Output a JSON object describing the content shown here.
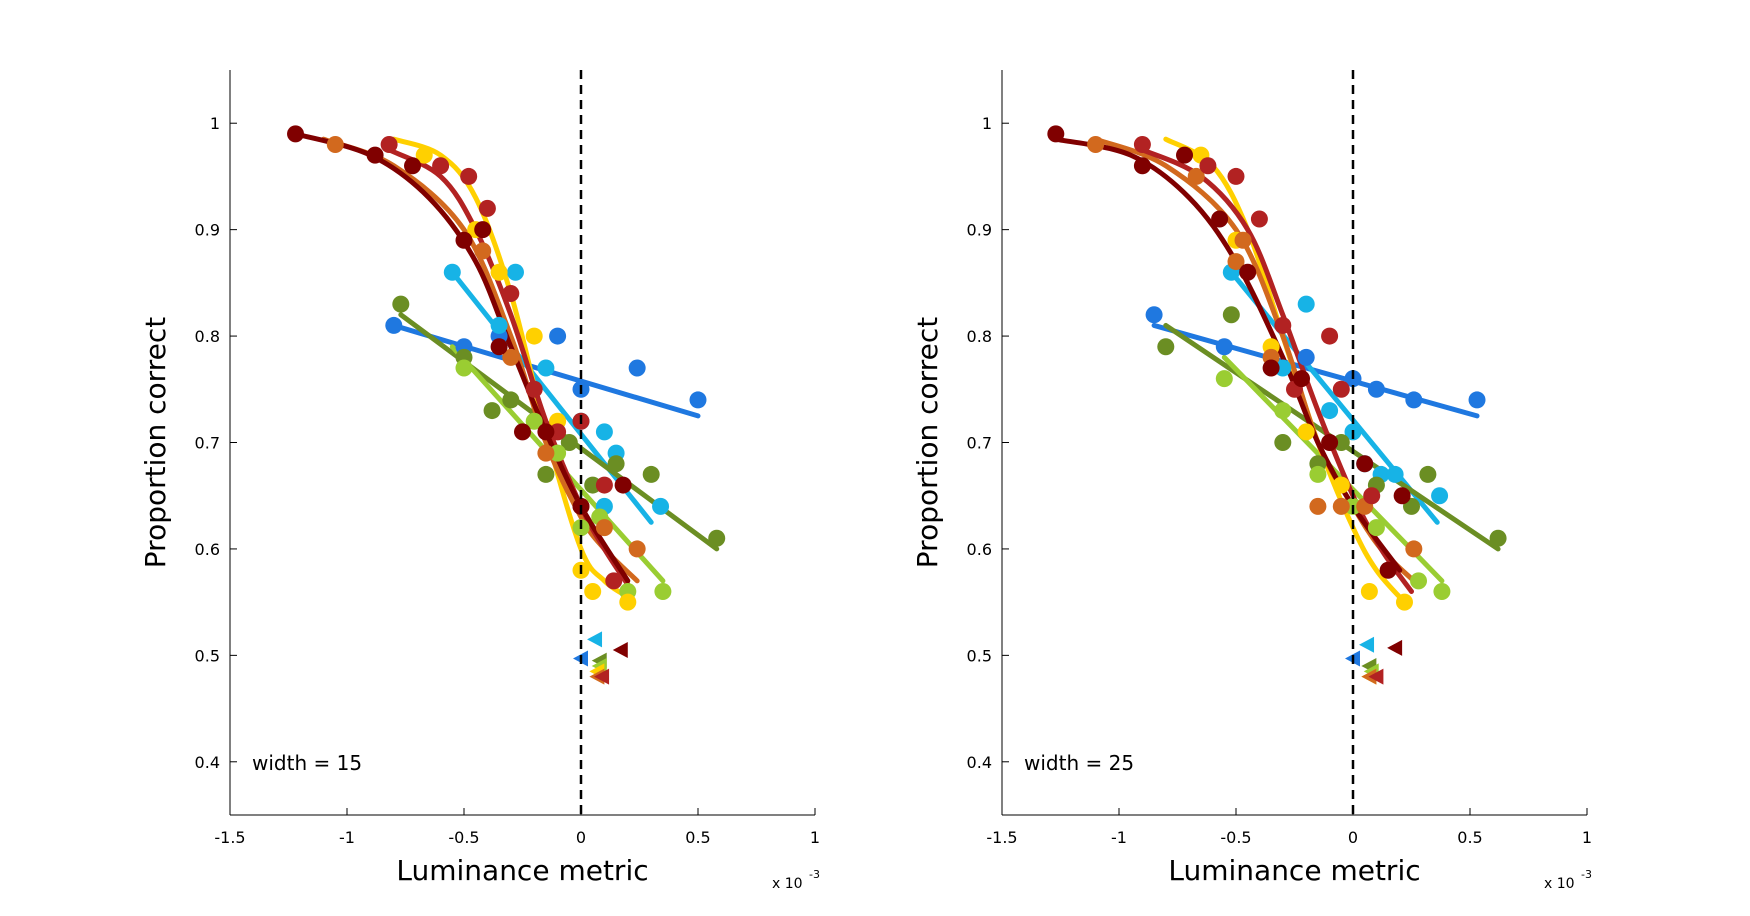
{
  "chart_data": [
    {
      "type": "scatter",
      "xlabel": "Luminance metric",
      "ylabel": "Proportion correct",
      "annotation": "width = 15",
      "x_multiplier_text": "x 10",
      "x_multiplier_exp": "-3",
      "xlim": [
        -1.5,
        1
      ],
      "ylim": [
        0.35,
        1.05
      ],
      "xticks": [
        -1.5,
        -1,
        -0.5,
        0,
        0.5,
        1
      ],
      "xticklabels": [
        "-1.5",
        "-1",
        "-0.5",
        "0",
        "0.5",
        "1"
      ],
      "yticks": [
        0.4,
        0.5,
        0.6,
        0.7,
        0.8,
        0.9,
        1
      ],
      "yticklabels": [
        "0.4",
        "0.5",
        "0.6",
        "0.7",
        "0.8",
        "0.9",
        "1"
      ],
      "reference_line_x": 0,
      "grid": false,
      "series": [
        {
          "color": "#1f78e0",
          "fit": "linear",
          "points": [
            [
              -0.8,
              0.81
            ],
            [
              -0.5,
              0.79
            ],
            [
              -0.35,
              0.8
            ],
            [
              -0.1,
              0.8
            ],
            [
              0,
              0.75
            ],
            [
              0.24,
              0.77
            ],
            [
              0.5,
              0.74
            ]
          ],
          "curve": [
            [
              -0.8,
              0.81
            ],
            [
              0.5,
              0.725
            ]
          ],
          "marker": [
            0,
            0.497
          ]
        },
        {
          "color": "#17b3e6",
          "fit": "linear",
          "points": [
            [
              -0.55,
              0.86
            ],
            [
              -0.28,
              0.86
            ],
            [
              -0.35,
              0.81
            ],
            [
              -0.15,
              0.77
            ],
            [
              0,
              0.72
            ],
            [
              0.1,
              0.71
            ],
            [
              0.15,
              0.69
            ],
            [
              0.1,
              0.64
            ],
            [
              0.34,
              0.64
            ]
          ],
          "curve": [
            [
              -0.55,
              0.86
            ],
            [
              0.3,
              0.625
            ]
          ],
          "marker": [
            0.06,
            0.515
          ]
        },
        {
          "color": "#6b8e23",
          "fit": "linear",
          "points": [
            [
              -0.77,
              0.83
            ],
            [
              -0.5,
              0.78
            ],
            [
              -0.38,
              0.73
            ],
            [
              -0.3,
              0.74
            ],
            [
              -0.15,
              0.67
            ],
            [
              -0.05,
              0.7
            ],
            [
              0.05,
              0.66
            ],
            [
              0.15,
              0.68
            ],
            [
              0.3,
              0.67
            ],
            [
              0.58,
              0.61
            ]
          ],
          "curve": [
            [
              -0.77,
              0.82
            ],
            [
              0.58,
              0.6
            ]
          ],
          "marker": [
            0.08,
            0.495
          ]
        },
        {
          "color": "#9acd32",
          "fit": "linear",
          "points": [
            [
              -0.5,
              0.77
            ],
            [
              -0.2,
              0.72
            ],
            [
              -0.1,
              0.69
            ],
            [
              0,
              0.62
            ],
            [
              0.08,
              0.63
            ],
            [
              0.2,
              0.56
            ],
            [
              0.35,
              0.56
            ]
          ],
          "curve": [
            [
              -0.55,
              0.79
            ],
            [
              0.35,
              0.57
            ]
          ],
          "marker": [
            0.08,
            0.49
          ]
        },
        {
          "color": "#ffd000",
          "fit": "sigmoid",
          "points": [
            [
              -0.67,
              0.97
            ],
            [
              -0.45,
              0.9
            ],
            [
              -0.35,
              0.86
            ],
            [
              -0.2,
              0.8
            ],
            [
              -0.1,
              0.72
            ],
            [
              0,
              0.58
            ],
            [
              0.05,
              0.56
            ],
            [
              0.2,
              0.55
            ]
          ],
          "curve": [
            [
              -0.8,
              0.985
            ],
            [
              -0.6,
              0.97
            ],
            [
              -0.45,
              0.93
            ],
            [
              -0.3,
              0.84
            ],
            [
              -0.15,
              0.71
            ],
            [
              0,
              0.6
            ],
            [
              0.1,
              0.57
            ],
            [
              0.2,
              0.555
            ]
          ],
          "marker": [
            0.07,
            0.485
          ]
        },
        {
          "color": "#d2691e",
          "fit": "sigmoid",
          "points": [
            [
              -1.05,
              0.98
            ],
            [
              -0.42,
              0.88
            ],
            [
              -0.3,
              0.78
            ],
            [
              -0.15,
              0.69
            ],
            [
              0,
              0.64
            ],
            [
              0.1,
              0.62
            ],
            [
              0.24,
              0.6
            ]
          ],
          "curve": [
            [
              -1.1,
              0.985
            ],
            [
              -0.8,
              0.96
            ],
            [
              -0.5,
              0.9
            ],
            [
              -0.3,
              0.8
            ],
            [
              -0.15,
              0.7
            ],
            [
              0,
              0.63
            ],
            [
              0.1,
              0.6
            ],
            [
              0.24,
              0.57
            ]
          ],
          "marker": [
            0.07,
            0.48
          ]
        },
        {
          "color": "#b22222",
          "fit": "sigmoid",
          "points": [
            [
              -0.82,
              0.98
            ],
            [
              -0.6,
              0.96
            ],
            [
              -0.48,
              0.95
            ],
            [
              -0.4,
              0.92
            ],
            [
              -0.3,
              0.84
            ],
            [
              -0.2,
              0.75
            ],
            [
              -0.1,
              0.71
            ],
            [
              0,
              0.72
            ],
            [
              0.1,
              0.66
            ],
            [
              0.14,
              0.57
            ]
          ],
          "curve": [
            [
              -0.82,
              0.975
            ],
            [
              -0.6,
              0.95
            ],
            [
              -0.45,
              0.9
            ],
            [
              -0.3,
              0.82
            ],
            [
              -0.15,
              0.72
            ],
            [
              0,
              0.64
            ],
            [
              0.1,
              0.6
            ],
            [
              0.22,
              0.56
            ]
          ],
          "marker": [
            0.09,
            0.48
          ]
        },
        {
          "color": "#800000",
          "fit": "sigmoid",
          "points": [
            [
              -1.22,
              0.99
            ],
            [
              -0.88,
              0.97
            ],
            [
              -0.72,
              0.96
            ],
            [
              -0.5,
              0.89
            ],
            [
              -0.42,
              0.9
            ],
            [
              -0.35,
              0.79
            ],
            [
              -0.25,
              0.71
            ],
            [
              -0.15,
              0.71
            ],
            [
              0,
              0.64
            ],
            [
              0.18,
              0.66
            ]
          ],
          "curve": [
            [
              -1.22,
              0.99
            ],
            [
              -0.9,
              0.97
            ],
            [
              -0.65,
              0.93
            ],
            [
              -0.45,
              0.87
            ],
            [
              -0.3,
              0.79
            ],
            [
              -0.15,
              0.71
            ],
            [
              0,
              0.64
            ],
            [
              0.2,
              0.57
            ]
          ],
          "marker": [
            0.17,
            0.505
          ]
        }
      ]
    },
    {
      "type": "scatter",
      "xlabel": "Luminance metric",
      "ylabel": "Proportion correct",
      "annotation": "width = 25",
      "x_multiplier_text": "x 10",
      "x_multiplier_exp": "-3",
      "xlim": [
        -1.5,
        1
      ],
      "ylim": [
        0.35,
        1.05
      ],
      "xticks": [
        -1.5,
        -1,
        -0.5,
        0,
        0.5,
        1
      ],
      "xticklabels": [
        "-1.5",
        "-1",
        "-0.5",
        "0",
        "0.5",
        "1"
      ],
      "yticks": [
        0.4,
        0.5,
        0.6,
        0.7,
        0.8,
        0.9,
        1
      ],
      "yticklabels": [
        "0.4",
        "0.5",
        "0.6",
        "0.7",
        "0.8",
        "0.9",
        "1"
      ],
      "reference_line_x": 0,
      "grid": false,
      "series": [
        {
          "color": "#1f78e0",
          "fit": "linear",
          "points": [
            [
              -0.85,
              0.82
            ],
            [
              -0.55,
              0.79
            ],
            [
              -0.2,
              0.78
            ],
            [
              0,
              0.76
            ],
            [
              0.1,
              0.75
            ],
            [
              0.26,
              0.74
            ],
            [
              0.53,
              0.74
            ]
          ],
          "curve": [
            [
              -0.85,
              0.81
            ],
            [
              0.53,
              0.725
            ]
          ],
          "marker": [
            0,
            0.497
          ]
        },
        {
          "color": "#17b3e6",
          "fit": "linear",
          "points": [
            [
              -0.52,
              0.86
            ],
            [
              -0.2,
              0.83
            ],
            [
              -0.3,
              0.77
            ],
            [
              -0.1,
              0.73
            ],
            [
              0,
              0.71
            ],
            [
              0.05,
              0.68
            ],
            [
              0.12,
              0.67
            ],
            [
              0.18,
              0.67
            ],
            [
              0.37,
              0.65
            ]
          ],
          "curve": [
            [
              -0.52,
              0.86
            ],
            [
              0.36,
              0.625
            ]
          ],
          "marker": [
            0.06,
            0.51
          ]
        },
        {
          "color": "#6b8e23",
          "fit": "linear",
          "points": [
            [
              -0.8,
              0.79
            ],
            [
              -0.52,
              0.82
            ],
            [
              -0.3,
              0.7
            ],
            [
              -0.15,
              0.68
            ],
            [
              -0.05,
              0.7
            ],
            [
              0.1,
              0.66
            ],
            [
              0.25,
              0.64
            ],
            [
              0.32,
              0.67
            ],
            [
              0.62,
              0.61
            ]
          ],
          "curve": [
            [
              -0.8,
              0.81
            ],
            [
              0.62,
              0.6
            ]
          ],
          "marker": [
            0.07,
            0.49
          ]
        },
        {
          "color": "#9acd32",
          "fit": "linear",
          "points": [
            [
              -0.55,
              0.76
            ],
            [
              -0.3,
              0.73
            ],
            [
              -0.15,
              0.67
            ],
            [
              0,
              0.64
            ],
            [
              0.1,
              0.62
            ],
            [
              0.28,
              0.57
            ],
            [
              0.38,
              0.56
            ]
          ],
          "curve": [
            [
              -0.55,
              0.78
            ],
            [
              0.38,
              0.57
            ]
          ],
          "marker": [
            0.08,
            0.485
          ]
        },
        {
          "color": "#ffd000",
          "fit": "sigmoid",
          "points": [
            [
              -0.65,
              0.97
            ],
            [
              -0.5,
              0.89
            ],
            [
              -0.35,
              0.79
            ],
            [
              -0.2,
              0.71
            ],
            [
              -0.05,
              0.66
            ],
            [
              0.07,
              0.56
            ],
            [
              0.22,
              0.55
            ]
          ],
          "curve": [
            [
              -0.8,
              0.985
            ],
            [
              -0.6,
              0.96
            ],
            [
              -0.45,
              0.9
            ],
            [
              -0.3,
              0.8
            ],
            [
              -0.15,
              0.7
            ],
            [
              0,
              0.62
            ],
            [
              0.1,
              0.58
            ],
            [
              0.22,
              0.55
            ]
          ],
          "marker": [
            0.07,
            0.48
          ]
        },
        {
          "color": "#d2691e",
          "fit": "sigmoid",
          "points": [
            [
              -1.1,
              0.98
            ],
            [
              -0.67,
              0.95
            ],
            [
              -0.47,
              0.89
            ],
            [
              -0.5,
              0.87
            ],
            [
              -0.35,
              0.78
            ],
            [
              -0.15,
              0.64
            ],
            [
              -0.05,
              0.64
            ],
            [
              0.05,
              0.64
            ],
            [
              0.26,
              0.6
            ]
          ],
          "curve": [
            [
              -1.1,
              0.985
            ],
            [
              -0.8,
              0.96
            ],
            [
              -0.5,
              0.9
            ],
            [
              -0.3,
              0.8
            ],
            [
              -0.15,
              0.7
            ],
            [
              0,
              0.64
            ],
            [
              0.12,
              0.6
            ],
            [
              0.26,
              0.57
            ]
          ],
          "marker": [
            0.07,
            0.48
          ]
        },
        {
          "color": "#b22222",
          "fit": "sigmoid",
          "points": [
            [
              -0.9,
              0.98
            ],
            [
              -0.62,
              0.96
            ],
            [
              -0.5,
              0.95
            ],
            [
              -0.4,
              0.91
            ],
            [
              -0.3,
              0.81
            ],
            [
              -0.25,
              0.75
            ],
            [
              -0.1,
              0.8
            ],
            [
              -0.05,
              0.75
            ],
            [
              0.08,
              0.65
            ]
          ],
          "curve": [
            [
              -0.9,
              0.975
            ],
            [
              -0.65,
              0.95
            ],
            [
              -0.45,
              0.9
            ],
            [
              -0.3,
              0.82
            ],
            [
              -0.15,
              0.73
            ],
            [
              0,
              0.65
            ],
            [
              0.12,
              0.6
            ],
            [
              0.25,
              0.56
            ]
          ],
          "marker": [
            0.1,
            0.48
          ]
        },
        {
          "color": "#800000",
          "fit": "sigmoid",
          "points": [
            [
              -1.27,
              0.99
            ],
            [
              -0.9,
              0.96
            ],
            [
              -0.72,
              0.97
            ],
            [
              -0.57,
              0.91
            ],
            [
              -0.45,
              0.86
            ],
            [
              -0.35,
              0.77
            ],
            [
              -0.22,
              0.76
            ],
            [
              -0.1,
              0.7
            ],
            [
              0.05,
              0.68
            ],
            [
              0.15,
              0.58
            ],
            [
              0.21,
              0.65
            ]
          ],
          "curve": [
            [
              -1.27,
              0.985
            ],
            [
              -0.95,
              0.97
            ],
            [
              -0.7,
              0.93
            ],
            [
              -0.5,
              0.87
            ],
            [
              -0.3,
              0.78
            ],
            [
              -0.15,
              0.7
            ],
            [
              0,
              0.64
            ],
            [
              0.2,
              0.58
            ]
          ],
          "marker": [
            0.18,
            0.507
          ]
        }
      ]
    }
  ]
}
